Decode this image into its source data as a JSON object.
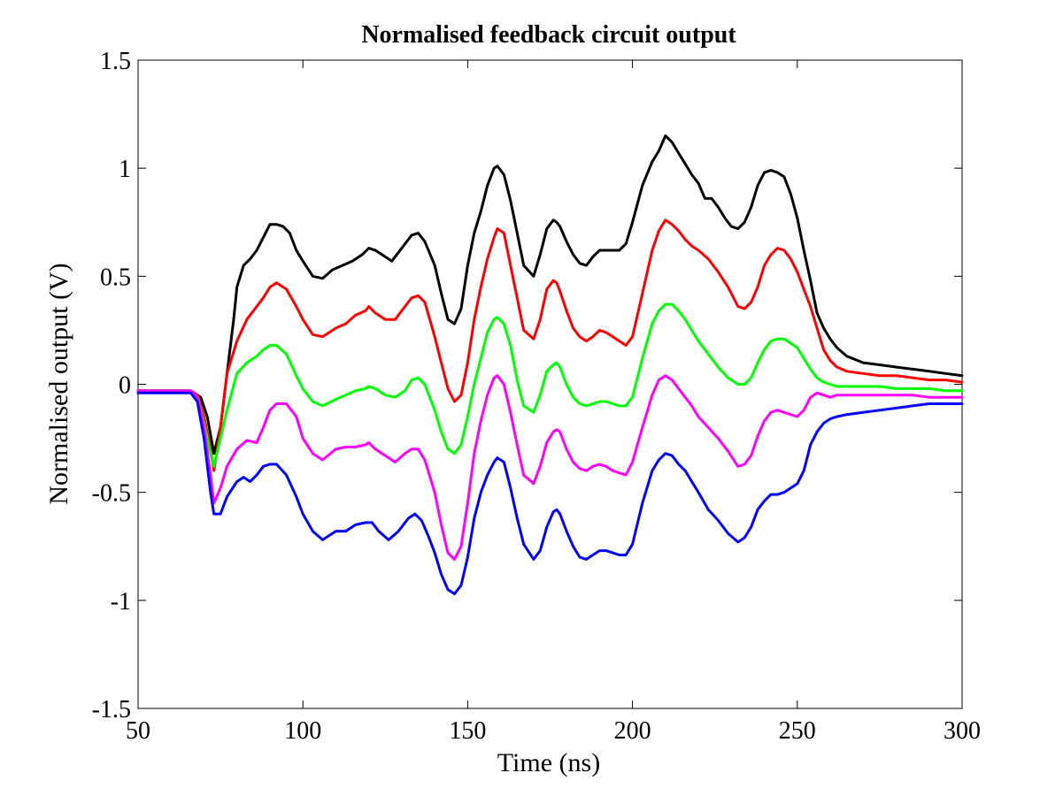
{
  "chart_data": {
    "type": "line",
    "title": "Normalised feedback circuit output",
    "xlabel": "Time (ns)",
    "ylabel": "Normalised output (V)",
    "xlim": [
      50,
      300
    ],
    "ylim": [
      -1.5,
      1.5
    ],
    "xticks": [
      50,
      100,
      150,
      200,
      250,
      300
    ],
    "xtick_labels": [
      "50",
      "100",
      "150",
      "200",
      "250",
      "300"
    ],
    "yticks": [
      -1.5,
      -1,
      -0.5,
      0,
      0.5,
      1,
      1.5
    ],
    "ytick_labels": [
      "-1.5",
      "-1",
      "-0.5",
      "0",
      "0.5",
      "1",
      "1.5"
    ],
    "grid": false,
    "series": [
      {
        "color": "#000000",
        "x": [
          50,
          60,
          66,
          69,
          71,
          73,
          75,
          77,
          79,
          80,
          82,
          84,
          86,
          88,
          90,
          92,
          94,
          96,
          98,
          100,
          103,
          106,
          109,
          112,
          115,
          118,
          120,
          122,
          124,
          127,
          130,
          133,
          135,
          137,
          140,
          142,
          144,
          146,
          148,
          150,
          152,
          154,
          156,
          158,
          159,
          161,
          163,
          165,
          167,
          170,
          172,
          174,
          176,
          177,
          178,
          180,
          182,
          184,
          186,
          188,
          190,
          192,
          194,
          196,
          198,
          200,
          203,
          206,
          208,
          210,
          212,
          214,
          216,
          218,
          220,
          222,
          224,
          226,
          228,
          230,
          232,
          234,
          236,
          238,
          240,
          242,
          244,
          246,
          248,
          250,
          252,
          254,
          256,
          258,
          260,
          262,
          265,
          270,
          275,
          280,
          285,
          290,
          295,
          300
        ],
        "y": [
          -0.03,
          -0.03,
          -0.03,
          -0.06,
          -0.15,
          -0.32,
          -0.2,
          0.05,
          0.3,
          0.45,
          0.55,
          0.58,
          0.62,
          0.68,
          0.74,
          0.74,
          0.73,
          0.7,
          0.62,
          0.57,
          0.5,
          0.49,
          0.53,
          0.55,
          0.57,
          0.6,
          0.63,
          0.62,
          0.6,
          0.57,
          0.63,
          0.69,
          0.7,
          0.66,
          0.55,
          0.42,
          0.3,
          0.28,
          0.35,
          0.55,
          0.7,
          0.8,
          0.92,
          1.0,
          1.01,
          0.97,
          0.85,
          0.7,
          0.55,
          0.5,
          0.6,
          0.72,
          0.76,
          0.75,
          0.73,
          0.66,
          0.6,
          0.56,
          0.55,
          0.59,
          0.62,
          0.62,
          0.62,
          0.62,
          0.65,
          0.75,
          0.92,
          1.03,
          1.08,
          1.15,
          1.12,
          1.07,
          1.02,
          0.97,
          0.93,
          0.86,
          0.86,
          0.82,
          0.77,
          0.73,
          0.72,
          0.75,
          0.82,
          0.92,
          0.98,
          0.99,
          0.98,
          0.96,
          0.88,
          0.77,
          0.62,
          0.48,
          0.33,
          0.26,
          0.21,
          0.17,
          0.13,
          0.1,
          0.09,
          0.08,
          0.07,
          0.06,
          0.05,
          0.04
        ]
      },
      {
        "color": "#ff0000",
        "x": [
          50,
          60,
          66,
          68,
          70,
          72,
          73,
          75,
          77,
          80,
          83,
          86,
          88,
          90,
          92,
          95,
          98,
          100,
          103,
          106,
          110,
          113,
          116,
          119,
          120,
          122,
          125,
          128,
          131,
          133,
          135,
          137,
          140,
          142,
          144,
          146,
          148,
          150,
          152,
          154,
          156,
          158,
          159,
          161,
          163,
          165,
          167,
          170,
          172,
          174,
          176,
          177,
          178,
          180,
          182,
          184,
          186,
          188,
          190,
          192,
          194,
          196,
          198,
          200,
          203,
          206,
          208,
          210,
          212,
          214,
          216,
          218,
          220,
          223,
          226,
          229,
          232,
          234,
          236,
          238,
          240,
          242,
          244,
          246,
          248,
          250,
          252,
          254,
          256,
          258,
          260,
          262,
          265,
          270,
          275,
          280,
          285,
          290,
          295,
          300
        ],
        "y": [
          -0.03,
          -0.03,
          -0.03,
          -0.05,
          -0.15,
          -0.3,
          -0.4,
          -0.2,
          0.05,
          0.2,
          0.3,
          0.36,
          0.4,
          0.45,
          0.47,
          0.44,
          0.36,
          0.3,
          0.23,
          0.22,
          0.26,
          0.28,
          0.32,
          0.34,
          0.36,
          0.33,
          0.3,
          0.3,
          0.36,
          0.4,
          0.41,
          0.38,
          0.22,
          0.1,
          -0.02,
          -0.08,
          -0.05,
          0.1,
          0.3,
          0.45,
          0.58,
          0.68,
          0.72,
          0.7,
          0.55,
          0.4,
          0.25,
          0.21,
          0.3,
          0.44,
          0.48,
          0.47,
          0.43,
          0.34,
          0.26,
          0.22,
          0.2,
          0.22,
          0.25,
          0.24,
          0.22,
          0.2,
          0.18,
          0.22,
          0.42,
          0.62,
          0.71,
          0.76,
          0.74,
          0.71,
          0.67,
          0.64,
          0.62,
          0.58,
          0.52,
          0.45,
          0.36,
          0.35,
          0.38,
          0.45,
          0.55,
          0.6,
          0.63,
          0.62,
          0.58,
          0.52,
          0.44,
          0.36,
          0.26,
          0.16,
          0.11,
          0.08,
          0.06,
          0.05,
          0.04,
          0.04,
          0.03,
          0.02,
          0.02,
          0.01
        ]
      },
      {
        "color": "#00ff00",
        "x": [
          50,
          60,
          66,
          68,
          70,
          72,
          73,
          75,
          77,
          80,
          83,
          86,
          88,
          90,
          92,
          95,
          98,
          100,
          103,
          106,
          110,
          113,
          116,
          119,
          120,
          122,
          125,
          128,
          131,
          133,
          135,
          137,
          140,
          142,
          144,
          146,
          148,
          150,
          152,
          154,
          156,
          158,
          159,
          161,
          163,
          165,
          167,
          170,
          172,
          174,
          176,
          177,
          178,
          180,
          182,
          184,
          186,
          188,
          190,
          192,
          194,
          196,
          198,
          200,
          203,
          206,
          208,
          210,
          212,
          214,
          216,
          218,
          220,
          223,
          226,
          229,
          232,
          234,
          236,
          238,
          240,
          242,
          244,
          246,
          248,
          250,
          252,
          254,
          256,
          258,
          260,
          262,
          265,
          270,
          275,
          280,
          285,
          290,
          295,
          300
        ],
        "y": [
          -0.03,
          -0.03,
          -0.03,
          -0.06,
          -0.18,
          -0.32,
          -0.38,
          -0.25,
          -0.12,
          0.05,
          0.1,
          0.13,
          0.16,
          0.18,
          0.18,
          0.14,
          0.04,
          -0.02,
          -0.08,
          -0.1,
          -0.07,
          -0.05,
          -0.03,
          -0.02,
          -0.01,
          -0.02,
          -0.05,
          -0.06,
          -0.03,
          0.02,
          0.03,
          0.0,
          -0.12,
          -0.22,
          -0.3,
          -0.32,
          -0.28,
          -0.15,
          0.0,
          0.12,
          0.24,
          0.3,
          0.31,
          0.28,
          0.18,
          0.02,
          -0.1,
          -0.13,
          -0.05,
          0.06,
          0.09,
          0.1,
          0.08,
          0.0,
          -0.06,
          -0.09,
          -0.1,
          -0.09,
          -0.08,
          -0.08,
          -0.09,
          -0.1,
          -0.1,
          -0.06,
          0.12,
          0.28,
          0.34,
          0.37,
          0.37,
          0.34,
          0.3,
          0.25,
          0.2,
          0.14,
          0.08,
          0.03,
          0.0,
          0.0,
          0.03,
          0.1,
          0.16,
          0.2,
          0.21,
          0.21,
          0.19,
          0.17,
          0.12,
          0.07,
          0.03,
          0.01,
          0.0,
          -0.01,
          -0.01,
          -0.01,
          -0.01,
          -0.02,
          -0.02,
          -0.02,
          -0.03,
          -0.03
        ]
      },
      {
        "color": "#ff00ff",
        "x": [
          50,
          60,
          66,
          68,
          70,
          72,
          73,
          75,
          77,
          80,
          83,
          86,
          88,
          90,
          92,
          95,
          98,
          100,
          103,
          106,
          110,
          113,
          116,
          119,
          120,
          122,
          125,
          128,
          131,
          133,
          135,
          137,
          140,
          142,
          144,
          146,
          148,
          150,
          152,
          154,
          156,
          158,
          159,
          161,
          163,
          165,
          167,
          170,
          172,
          174,
          176,
          177,
          178,
          180,
          182,
          184,
          186,
          188,
          190,
          192,
          194,
          196,
          198,
          200,
          203,
          206,
          208,
          210,
          212,
          214,
          216,
          218,
          220,
          223,
          226,
          229,
          232,
          234,
          236,
          238,
          240,
          242,
          244,
          246,
          248,
          250,
          252,
          254,
          256,
          258,
          260,
          262,
          265,
          270,
          275,
          280,
          285,
          290,
          295,
          300
        ],
        "y": [
          -0.03,
          -0.03,
          -0.03,
          -0.06,
          -0.2,
          -0.42,
          -0.55,
          -0.48,
          -0.38,
          -0.3,
          -0.26,
          -0.27,
          -0.2,
          -0.12,
          -0.09,
          -0.09,
          -0.15,
          -0.25,
          -0.32,
          -0.35,
          -0.3,
          -0.29,
          -0.29,
          -0.28,
          -0.27,
          -0.3,
          -0.33,
          -0.36,
          -0.32,
          -0.3,
          -0.3,
          -0.35,
          -0.5,
          -0.65,
          -0.78,
          -0.81,
          -0.75,
          -0.55,
          -0.32,
          -0.17,
          -0.05,
          0.03,
          0.04,
          0.0,
          -0.13,
          -0.28,
          -0.42,
          -0.46,
          -0.38,
          -0.27,
          -0.22,
          -0.21,
          -0.22,
          -0.3,
          -0.36,
          -0.39,
          -0.4,
          -0.38,
          -0.37,
          -0.38,
          -0.4,
          -0.41,
          -0.42,
          -0.36,
          -0.2,
          -0.05,
          0.02,
          0.04,
          0.02,
          -0.02,
          -0.06,
          -0.1,
          -0.15,
          -0.2,
          -0.25,
          -0.31,
          -0.38,
          -0.37,
          -0.33,
          -0.24,
          -0.17,
          -0.13,
          -0.12,
          -0.13,
          -0.14,
          -0.15,
          -0.12,
          -0.06,
          -0.04,
          -0.05,
          -0.06,
          -0.05,
          -0.05,
          -0.05,
          -0.05,
          -0.05,
          -0.05,
          -0.06,
          -0.06,
          -0.06
        ]
      },
      {
        "color": "#0000ff",
        "x": [
          50,
          60,
          66,
          68,
          70,
          72,
          73,
          75,
          77,
          80,
          82,
          84,
          86,
          88,
          90,
          92,
          95,
          98,
          100,
          103,
          106,
          110,
          113,
          116,
          119,
          121,
          123,
          126,
          129,
          132,
          134,
          136,
          138,
          140,
          142,
          144,
          146,
          148,
          150,
          152,
          154,
          156,
          158,
          159,
          161,
          163,
          165,
          167,
          170,
          172,
          174,
          176,
          177,
          178,
          180,
          182,
          184,
          186,
          188,
          190,
          192,
          194,
          196,
          198,
          200,
          203,
          206,
          208,
          210,
          212,
          214,
          216,
          218,
          220,
          223,
          226,
          229,
          232,
          234,
          236,
          238,
          240,
          242,
          244,
          246,
          248,
          250,
          252,
          254,
          256,
          258,
          260,
          262,
          265,
          270,
          275,
          280,
          285,
          290,
          295,
          300
        ],
        "y": [
          -0.04,
          -0.04,
          -0.04,
          -0.08,
          -0.25,
          -0.5,
          -0.6,
          -0.6,
          -0.52,
          -0.45,
          -0.43,
          -0.45,
          -0.42,
          -0.38,
          -0.37,
          -0.37,
          -0.42,
          -0.52,
          -0.6,
          -0.68,
          -0.72,
          -0.68,
          -0.68,
          -0.65,
          -0.64,
          -0.64,
          -0.68,
          -0.72,
          -0.68,
          -0.62,
          -0.6,
          -0.63,
          -0.7,
          -0.78,
          -0.88,
          -0.95,
          -0.97,
          -0.93,
          -0.8,
          -0.62,
          -0.5,
          -0.42,
          -0.36,
          -0.34,
          -0.36,
          -0.48,
          -0.62,
          -0.74,
          -0.81,
          -0.77,
          -0.66,
          -0.59,
          -0.58,
          -0.6,
          -0.68,
          -0.75,
          -0.8,
          -0.81,
          -0.79,
          -0.77,
          -0.77,
          -0.78,
          -0.79,
          -0.79,
          -0.74,
          -0.55,
          -0.4,
          -0.35,
          -0.32,
          -0.33,
          -0.37,
          -0.4,
          -0.45,
          -0.5,
          -0.58,
          -0.63,
          -0.69,
          -0.73,
          -0.71,
          -0.66,
          -0.58,
          -0.54,
          -0.51,
          -0.51,
          -0.5,
          -0.48,
          -0.46,
          -0.4,
          -0.28,
          -0.22,
          -0.18,
          -0.16,
          -0.15,
          -0.14,
          -0.13,
          -0.12,
          -0.11,
          -0.1,
          -0.09,
          -0.09,
          -0.09
        ]
      }
    ]
  }
}
